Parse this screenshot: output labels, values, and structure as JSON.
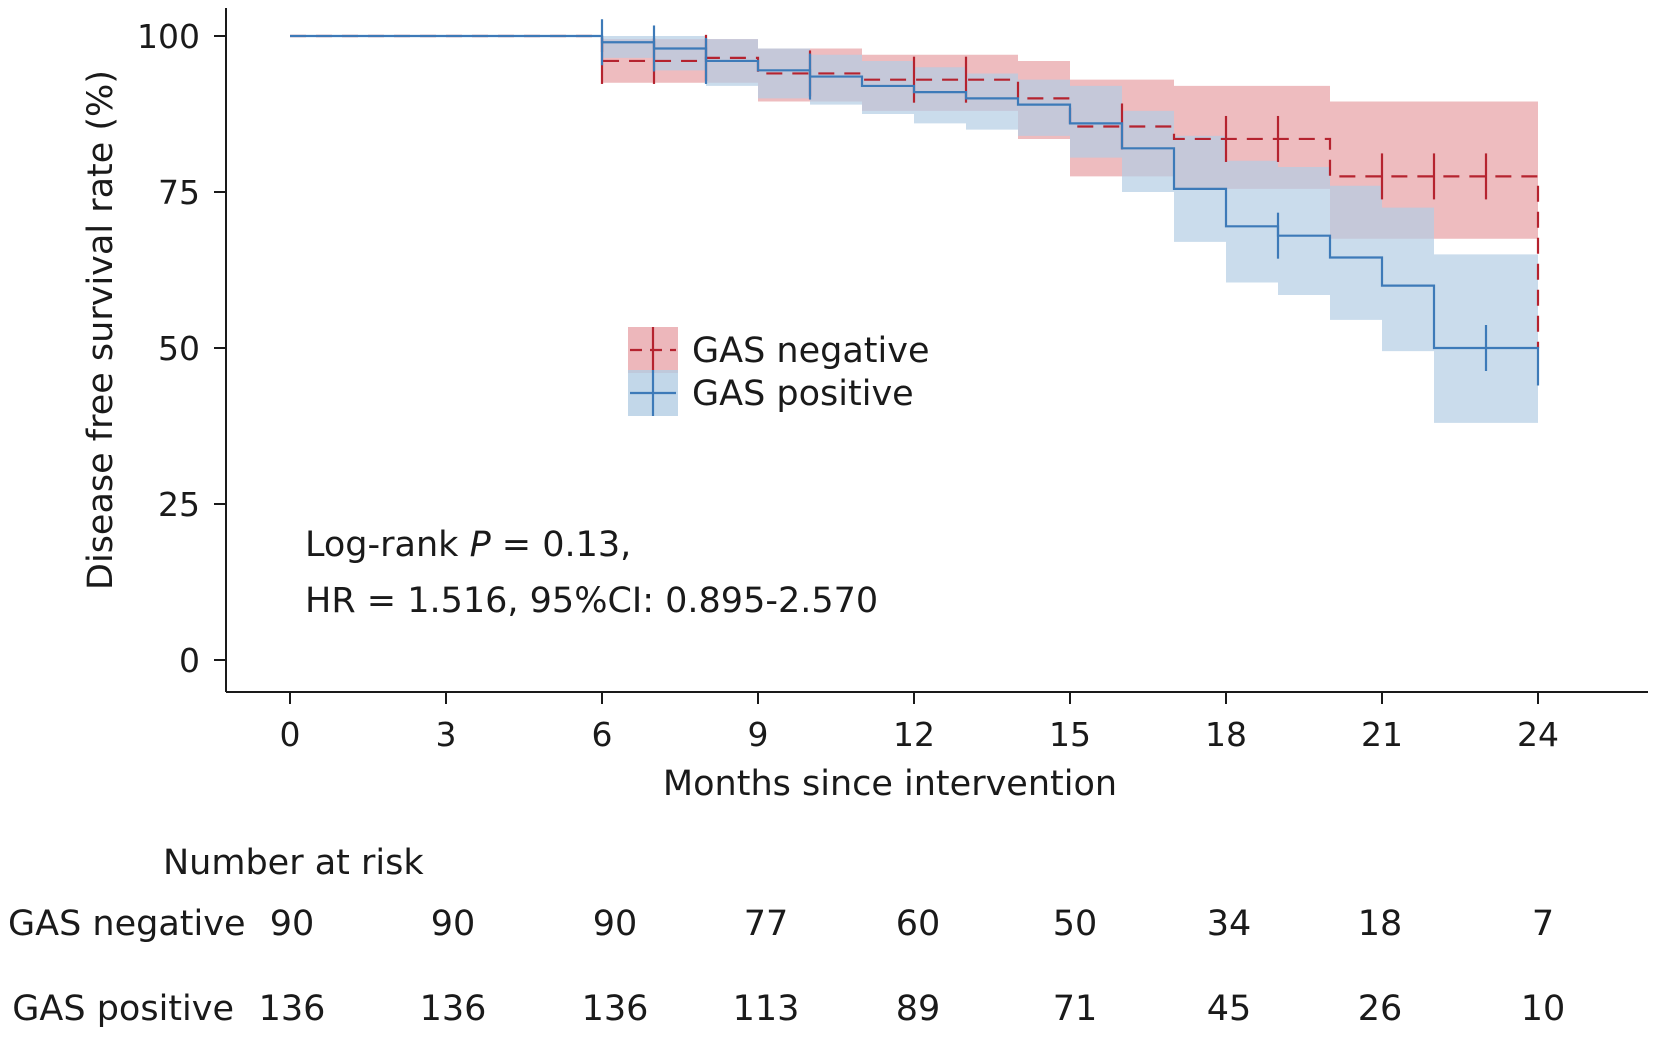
{
  "chart_data": {
    "type": "line",
    "subtype": "kaplan-meier",
    "xlabel": "Months since intervention",
    "ylabel": "Disease free survival rate (%)",
    "xlim": [
      0,
      24
    ],
    "ylim": [
      0,
      100
    ],
    "xticks": [
      0,
      3,
      6,
      9,
      12,
      15,
      18,
      21,
      24
    ],
    "yticks": [
      0,
      25,
      50,
      75,
      100
    ],
    "grid": false,
    "legend_position": "center",
    "series": [
      {
        "name": "GAS negative",
        "color": "#b5232f",
        "ci_color": "#e8a5aa",
        "line_style": "dashed",
        "steps": [
          [
            0,
            100
          ],
          [
            6,
            96
          ],
          [
            8,
            96.5
          ],
          [
            9,
            94
          ],
          [
            11,
            93
          ],
          [
            14,
            90
          ],
          [
            15,
            85.5
          ],
          [
            17,
            83.5
          ],
          [
            20,
            77.5
          ],
          [
            24,
            77.5
          ],
          [
            24,
            50
          ]
        ],
        "ci_steps": [
          [
            0,
            100,
            100
          ],
          [
            6,
            92.5,
            99.5
          ],
          [
            9,
            89.5,
            98
          ],
          [
            11,
            88,
            97
          ],
          [
            14,
            83.5,
            96
          ],
          [
            15,
            77.5,
            93
          ],
          [
            17,
            75.5,
            92
          ],
          [
            20,
            67.5,
            89.5
          ],
          [
            24,
            67.5,
            89.5
          ]
        ],
        "censor_times": [
          6,
          7,
          8,
          10,
          12,
          13,
          16,
          18,
          19,
          21,
          22,
          23
        ]
      },
      {
        "name": "GAS positive",
        "color": "#3d7ab8",
        "ci_color": "#b3cde4",
        "line_style": "solid",
        "steps": [
          [
            0,
            100
          ],
          [
            6,
            99
          ],
          [
            7,
            98
          ],
          [
            8,
            96
          ],
          [
            9,
            94.5
          ],
          [
            10,
            93.5
          ],
          [
            11,
            92
          ],
          [
            12,
            91
          ],
          [
            13,
            90
          ],
          [
            14,
            89
          ],
          [
            15,
            86
          ],
          [
            16,
            82
          ],
          [
            17,
            75.5
          ],
          [
            18,
            69.5
          ],
          [
            19,
            68
          ],
          [
            20,
            64.5
          ],
          [
            21,
            60
          ],
          [
            22,
            50
          ],
          [
            24,
            50
          ],
          [
            24,
            44
          ]
        ],
        "ci_steps": [
          [
            0,
            100,
            100
          ],
          [
            6,
            96.5,
            100
          ],
          [
            7,
            94.5,
            100
          ],
          [
            8,
            92,
            99.5
          ],
          [
            9,
            90,
            98
          ],
          [
            10,
            89,
            97
          ],
          [
            11,
            87.5,
            96
          ],
          [
            12,
            86,
            95
          ],
          [
            13,
            85,
            94
          ],
          [
            14,
            84,
            93
          ],
          [
            15,
            80.5,
            92
          ],
          [
            16,
            75,
            88
          ],
          [
            17,
            67,
            84
          ],
          [
            18,
            60.5,
            80
          ],
          [
            19,
            58.5,
            79
          ],
          [
            20,
            54.5,
            76
          ],
          [
            21,
            49.5,
            72.5
          ],
          [
            22,
            38,
            65
          ],
          [
            24,
            38,
            65
          ]
        ],
        "censor_times": [
          6,
          7,
          8,
          10,
          19,
          23
        ]
      }
    ],
    "annotations": [
      "Log-rank P = 0.13,",
      "HR = 1.516, 95%CI: 0.895-2.570"
    ],
    "risk_table": {
      "title": "Number at risk",
      "times": [
        0,
        3,
        6,
        9,
        12,
        15,
        18,
        21,
        24
      ],
      "rows": [
        {
          "label": "GAS negative",
          "values": [
            90,
            90,
            90,
            77,
            60,
            50,
            34,
            18,
            7
          ]
        },
        {
          "label": "GAS positive",
          "values": [
            136,
            136,
            136,
            113,
            89,
            71,
            45,
            26,
            10
          ]
        }
      ]
    }
  }
}
